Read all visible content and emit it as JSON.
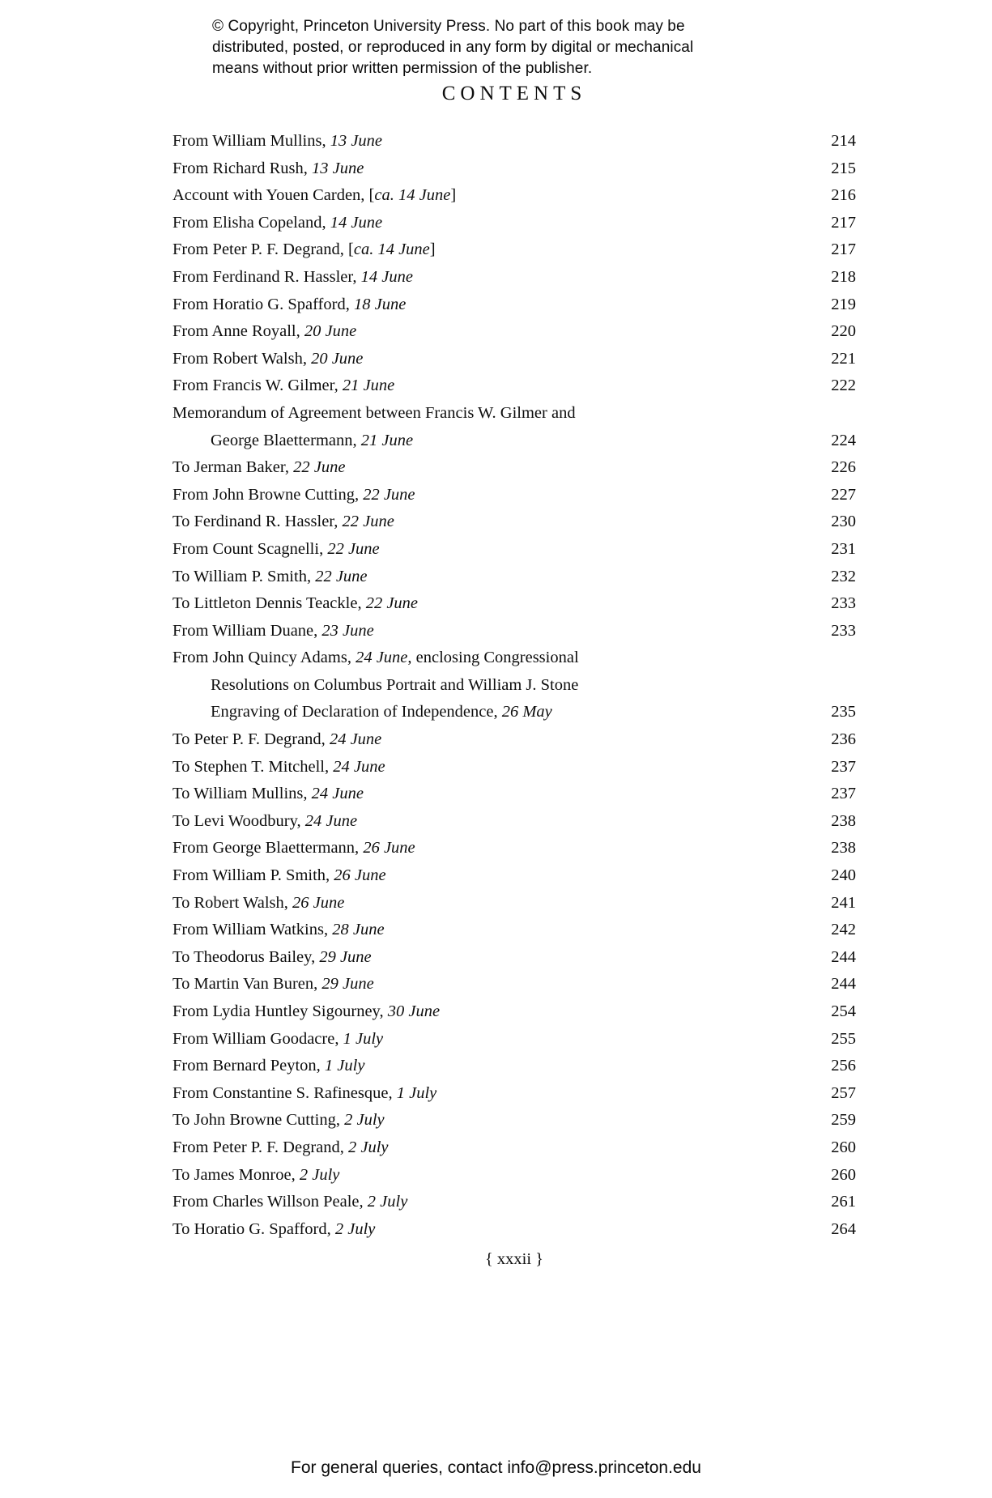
{
  "copyright": {
    "line1": "© Copyright, Princeton University Press. No part of this book may be",
    "line2": "distributed, posted, or reproduced in any form by digital or mechanical",
    "line3": "means without prior written permission of the publisher."
  },
  "title": "CONTENTS",
  "toc": {
    "entries": [
      {
        "page": "214",
        "lines": [
          [
            {
              "t": "From William Mullins, "
            },
            {
              "t": "13 June",
              "it": true
            }
          ]
        ]
      },
      {
        "page": "215",
        "lines": [
          [
            {
              "t": "From Richard Rush, "
            },
            {
              "t": "13 June",
              "it": true
            }
          ]
        ]
      },
      {
        "page": "216",
        "lines": [
          [
            {
              "t": "Account with Youen Carden, ["
            },
            {
              "t": "ca. 14 June",
              "it": true
            },
            {
              "t": "]"
            }
          ]
        ]
      },
      {
        "page": "217",
        "lines": [
          [
            {
              "t": "From Elisha Copeland, "
            },
            {
              "t": "14 June",
              "it": true
            }
          ]
        ]
      },
      {
        "page": "217",
        "lines": [
          [
            {
              "t": "From Peter P. F. Degrand, ["
            },
            {
              "t": "ca. 14 June",
              "it": true
            },
            {
              "t": "]"
            }
          ]
        ]
      },
      {
        "page": "218",
        "lines": [
          [
            {
              "t": "From Ferdinand R. Hassler, "
            },
            {
              "t": "14 June",
              "it": true
            }
          ]
        ]
      },
      {
        "page": "219",
        "lines": [
          [
            {
              "t": "From Horatio G. Spafford, "
            },
            {
              "t": "18 June",
              "it": true
            }
          ]
        ]
      },
      {
        "page": "220",
        "lines": [
          [
            {
              "t": "From Anne Royall, "
            },
            {
              "t": "20 June",
              "it": true
            }
          ]
        ]
      },
      {
        "page": "221",
        "lines": [
          [
            {
              "t": "From Robert Walsh, "
            },
            {
              "t": "20 June",
              "it": true
            }
          ]
        ]
      },
      {
        "page": "222",
        "lines": [
          [
            {
              "t": "From Francis W. Gilmer, "
            },
            {
              "t": "21 June",
              "it": true
            }
          ]
        ]
      },
      {
        "page": "224",
        "lines": [
          [
            {
              "t": "Memorandum of Agreement between Francis W. Gilmer and"
            }
          ],
          [
            {
              "t": "George Blaettermann, "
            },
            {
              "t": "21 June",
              "it": true
            }
          ]
        ]
      },
      {
        "page": "226",
        "lines": [
          [
            {
              "t": "To Jerman Baker, "
            },
            {
              "t": "22 June",
              "it": true
            }
          ]
        ]
      },
      {
        "page": "227",
        "lines": [
          [
            {
              "t": "From John Browne Cutting, "
            },
            {
              "t": "22 June",
              "it": true
            }
          ]
        ]
      },
      {
        "page": "230",
        "lines": [
          [
            {
              "t": "To Ferdinand R. Hassler, "
            },
            {
              "t": "22 June",
              "it": true
            }
          ]
        ]
      },
      {
        "page": "231",
        "lines": [
          [
            {
              "t": "From Count Scagnelli, "
            },
            {
              "t": "22 June",
              "it": true
            }
          ]
        ]
      },
      {
        "page": "232",
        "lines": [
          [
            {
              "t": "To William P. Smith, "
            },
            {
              "t": "22 June",
              "it": true
            }
          ]
        ]
      },
      {
        "page": "233",
        "lines": [
          [
            {
              "t": "To Littleton Dennis Teackle, "
            },
            {
              "t": "22 June",
              "it": true
            }
          ]
        ]
      },
      {
        "page": "233",
        "lines": [
          [
            {
              "t": "From William Duane, "
            },
            {
              "t": "23 June",
              "it": true
            }
          ]
        ]
      },
      {
        "page": "235",
        "lines": [
          [
            {
              "t": "From John Quincy Adams, "
            },
            {
              "t": "24 June",
              "it": true
            },
            {
              "t": ", enclosing Congressional"
            }
          ],
          [
            {
              "t": "Resolutions on Columbus Portrait and William J. Stone"
            }
          ],
          [
            {
              "t": "Engraving of Declaration of Independence, "
            },
            {
              "t": "26 May",
              "it": true
            }
          ]
        ]
      },
      {
        "page": "236",
        "lines": [
          [
            {
              "t": "To Peter P. F. Degrand, "
            },
            {
              "t": "24 June",
              "it": true
            }
          ]
        ]
      },
      {
        "page": "237",
        "lines": [
          [
            {
              "t": "To Stephen T. Mitchell, "
            },
            {
              "t": "24 June",
              "it": true
            }
          ]
        ]
      },
      {
        "page": "237",
        "lines": [
          [
            {
              "t": "To William Mullins, "
            },
            {
              "t": "24 June",
              "it": true
            }
          ]
        ]
      },
      {
        "page": "238",
        "lines": [
          [
            {
              "t": "To Levi Woodbury, "
            },
            {
              "t": "24 June",
              "it": true
            }
          ]
        ]
      },
      {
        "page": "238",
        "lines": [
          [
            {
              "t": "From George Blaettermann, "
            },
            {
              "t": "26 June",
              "it": true
            }
          ]
        ]
      },
      {
        "page": "240",
        "lines": [
          [
            {
              "t": "From William P. Smith, "
            },
            {
              "t": "26 June",
              "it": true
            }
          ]
        ]
      },
      {
        "page": "241",
        "lines": [
          [
            {
              "t": "To Robert Walsh, "
            },
            {
              "t": "26 June",
              "it": true
            }
          ]
        ]
      },
      {
        "page": "242",
        "lines": [
          [
            {
              "t": "From William Watkins, "
            },
            {
              "t": "28 June",
              "it": true
            }
          ]
        ]
      },
      {
        "page": "244",
        "lines": [
          [
            {
              "t": "To Theodorus Bailey, "
            },
            {
              "t": "29 June",
              "it": true
            }
          ]
        ]
      },
      {
        "page": "244",
        "lines": [
          [
            {
              "t": "To Martin Van Buren, "
            },
            {
              "t": "29 June",
              "it": true
            }
          ]
        ]
      },
      {
        "page": "254",
        "lines": [
          [
            {
              "t": "From Lydia Huntley Sigourney, "
            },
            {
              "t": "30 June",
              "it": true
            }
          ]
        ]
      },
      {
        "page": "255",
        "lines": [
          [
            {
              "t": "From William Goodacre, "
            },
            {
              "t": "1 July",
              "it": true
            }
          ]
        ]
      },
      {
        "page": "256",
        "lines": [
          [
            {
              "t": "From Bernard Peyton, "
            },
            {
              "t": "1 July",
              "it": true
            }
          ]
        ]
      },
      {
        "page": "257",
        "lines": [
          [
            {
              "t": "From Constantine S. Rafinesque, "
            },
            {
              "t": "1 July",
              "it": true
            }
          ]
        ]
      },
      {
        "page": "259",
        "lines": [
          [
            {
              "t": "To John Browne Cutting, "
            },
            {
              "t": "2 July",
              "it": true
            }
          ]
        ]
      },
      {
        "page": "260",
        "lines": [
          [
            {
              "t": "From Peter P. F. Degrand, "
            },
            {
              "t": "2 July",
              "it": true
            }
          ]
        ]
      },
      {
        "page": "260",
        "lines": [
          [
            {
              "t": "To James Monroe, "
            },
            {
              "t": "2 July",
              "it": true
            }
          ]
        ]
      },
      {
        "page": "261",
        "lines": [
          [
            {
              "t": "From Charles Willson Peale, "
            },
            {
              "t": "2 July",
              "it": true
            }
          ]
        ]
      },
      {
        "page": "264",
        "lines": [
          [
            {
              "t": "To Horatio G. Spafford, "
            },
            {
              "t": "2 July",
              "it": true
            }
          ]
        ]
      }
    ]
  },
  "folio": "{ xxxii }",
  "footer": {
    "query_line": "For general queries, contact info@press.princeton.edu"
  },
  "colors": {
    "text": "#0e0e0e",
    "background": "#ffffff"
  }
}
